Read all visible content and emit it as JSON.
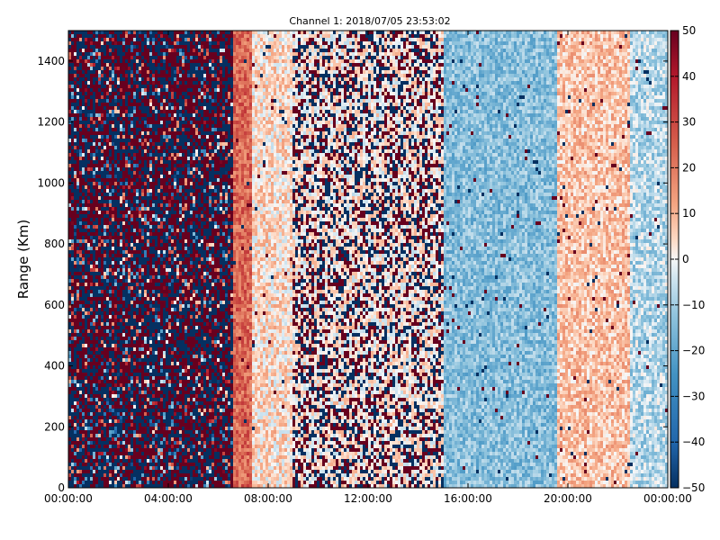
{
  "chart_data": {
    "type": "heatmap",
    "title": "Channel 1: 2018/07/05 23:53:02",
    "xlabel": "",
    "ylabel": "Range (Km)",
    "x_ticks": [
      "00:00:00",
      "04:00:00",
      "08:00:00",
      "12:00:00",
      "16:00:00",
      "20:00:00",
      "00:00:00"
    ],
    "x_range_hours": [
      0,
      24
    ],
    "y_ticks": [
      "0",
      "200",
      "400",
      "600",
      "800",
      "1000",
      "1200",
      "1400"
    ],
    "ylim": [
      0,
      1500
    ],
    "colorbar": {
      "colormap": "RdBu_r",
      "range": [
        -50,
        50
      ],
      "ticks": [
        "50",
        "40",
        "30",
        "20",
        "10",
        "0",
        "−10",
        "−20",
        "−30",
        "−40",
        "−50"
      ]
    },
    "grid": false,
    "colors": {
      "high": "#67001f",
      "mid": "#f7f7f7",
      "low": "#053061"
    },
    "regions": [
      {
        "from_hour": 0.0,
        "to_hour": 6.6,
        "pattern": "noise-saturated",
        "mean": 0,
        "spread": 60
      },
      {
        "from_hour": 6.6,
        "to_hour": 7.4,
        "pattern": "warm-band",
        "mean": 24,
        "spread": 10
      },
      {
        "from_hour": 7.4,
        "to_hour": 9.0,
        "pattern": "light",
        "mean": 4,
        "spread": 10
      },
      {
        "from_hour": 9.0,
        "to_hour": 15.0,
        "pattern": "speckled",
        "mean": 2,
        "spread": 45
      },
      {
        "from_hour": 15.0,
        "to_hour": 19.6,
        "pattern": "cool",
        "mean": -14,
        "spread": 9
      },
      {
        "from_hour": 19.6,
        "to_hour": 22.5,
        "pattern": "warm-light",
        "mean": 8,
        "spread": 9
      },
      {
        "from_hour": 22.5,
        "to_hour": 24.0,
        "pattern": "cool-light",
        "mean": -8,
        "spread": 10
      }
    ]
  }
}
